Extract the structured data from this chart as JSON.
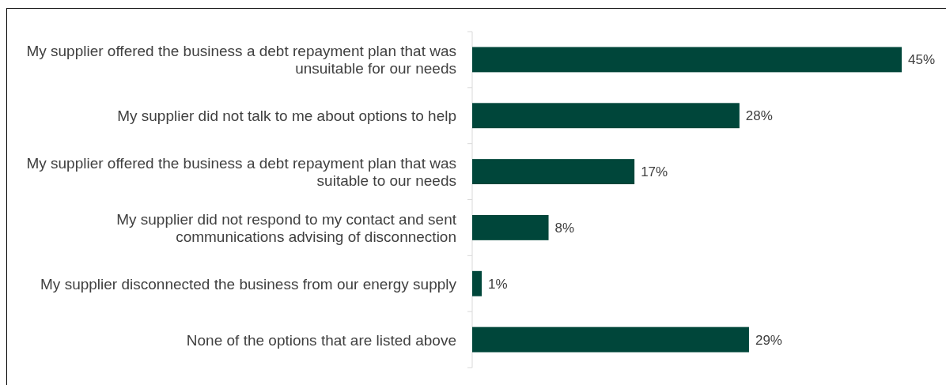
{
  "chart_data": {
    "type": "bar",
    "orientation": "horizontal",
    "categories": [
      "My supplier offered the business a debt repayment plan that was unsuitable for our needs",
      "My supplier did not talk to me about options to help",
      "My supplier offered the business a debt repayment plan that was suitable to our needs",
      "My supplier did not respond to my contact and sent communications advising of disconnection",
      "My supplier disconnected the business from our energy supply",
      "None of the options that are listed above"
    ],
    "values": [
      45,
      28,
      17,
      8,
      1,
      29
    ],
    "value_labels": [
      "45%",
      "28%",
      "17%",
      "8%",
      "1%",
      "29%"
    ],
    "color": "#00463a",
    "xlim": [
      0,
      45
    ],
    "tick_labels": "y"
  }
}
